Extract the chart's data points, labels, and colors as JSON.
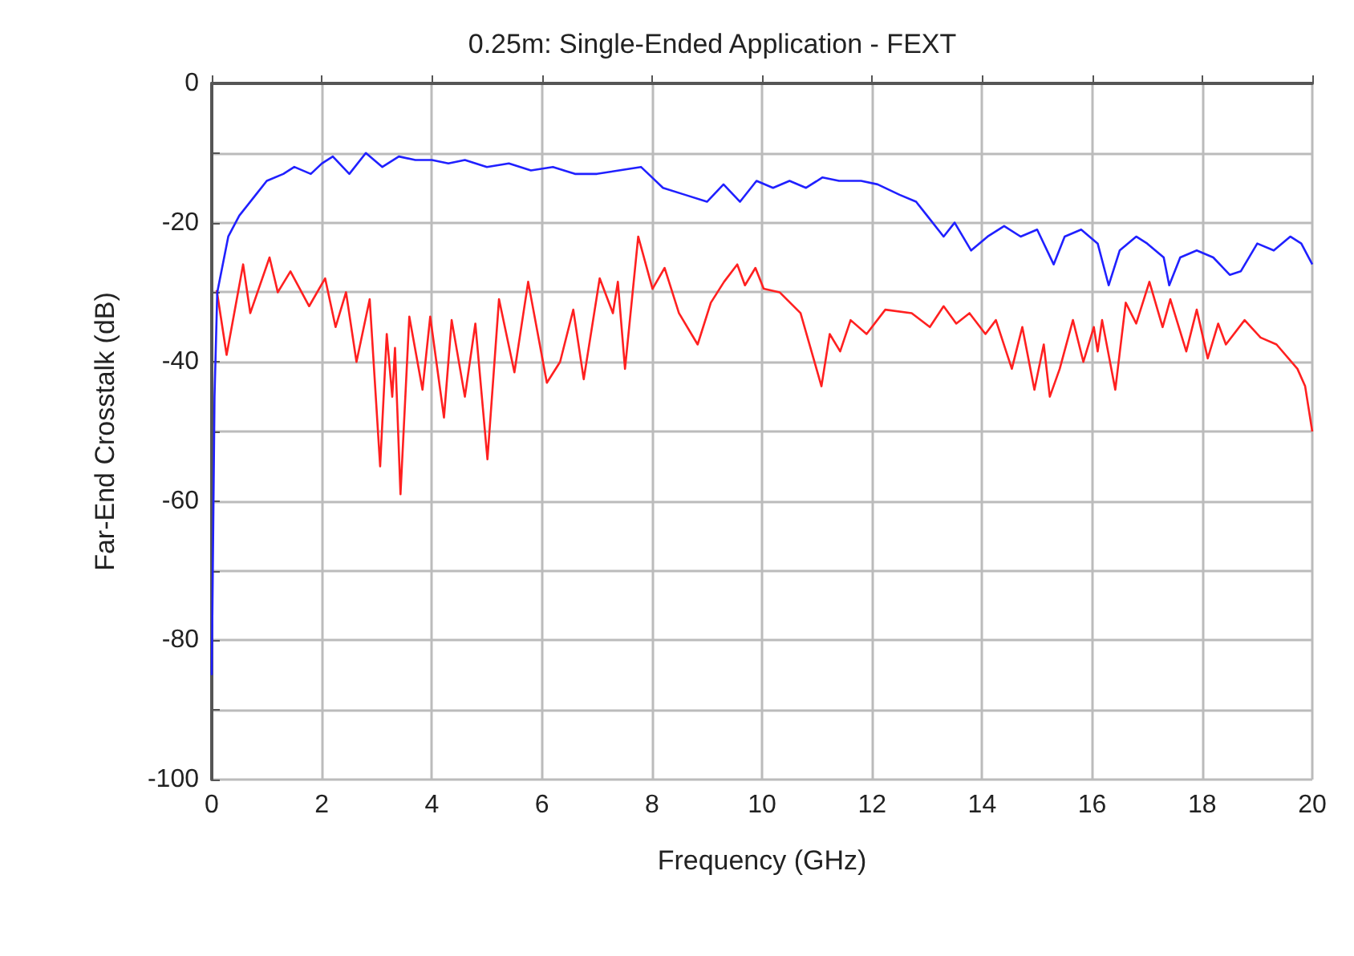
{
  "chart_data": {
    "type": "line",
    "title": "0.25m: Single-Ended Application - FEXT",
    "xlabel": "Frequency (GHz)",
    "ylabel": "Far-End Crosstalk (dB)",
    "xlim": [
      0,
      20
    ],
    "xticks": [
      0,
      2,
      4,
      6,
      8,
      10,
      12,
      14,
      16,
      18,
      20
    ],
    "ylim": [
      -100,
      0
    ],
    "yticks": [
      -100,
      {
        "value": -90,
        "label": null
      },
      -80,
      {
        "value": -70,
        "label": null
      },
      -60,
      {
        "value": -50,
        "label": null
      },
      -40,
      {
        "value": -30,
        "label": null
      },
      -20,
      {
        "value": -10,
        "label": null
      },
      0
    ],
    "grid": true,
    "marker": "none",
    "line_style": "solid",
    "series": [
      {
        "color": "#ff2020",
        "x": [
          0.09,
          0.27,
          0.57,
          0.7,
          1.05,
          1.2,
          1.43,
          1.77,
          2.06,
          2.25,
          2.44,
          2.63,
          2.87,
          3.06,
          3.18,
          3.28,
          3.33,
          3.43,
          3.59,
          3.83,
          3.97,
          4.22,
          4.36,
          4.6,
          4.79,
          5.01,
          5.22,
          5.5,
          5.75,
          6.09,
          6.33,
          6.57,
          6.76,
          7.05,
          7.29,
          7.38,
          7.51,
          7.75,
          8.01,
          8.23,
          8.49,
          8.83,
          9.07,
          9.31,
          9.55,
          9.69,
          9.88,
          10.03,
          10.32,
          10.7,
          11.08,
          11.23,
          11.42,
          11.61,
          11.9,
          12.24,
          12.72,
          13.05,
          13.3,
          13.53,
          13.77,
          14.06,
          14.25,
          14.54,
          14.73,
          14.95,
          15.12,
          15.23,
          15.41,
          15.65,
          15.84,
          16.03,
          16.1,
          16.18,
          16.42,
          16.61,
          16.8,
          17.04,
          17.28,
          17.42,
          17.71,
          17.9,
          18.1,
          18.29,
          18.43,
          18.77,
          19.06,
          19.35,
          19.73,
          19.87,
          20
        ],
        "values": [
          -29.7,
          -39,
          -26,
          -33,
          -25,
          -30,
          -27,
          -32,
          -28,
          -35,
          -30,
          -40,
          -31,
          -55,
          -36,
          -45,
          -38,
          -59,
          -33.5,
          -44,
          -33.5,
          -48,
          -34,
          -45,
          -34.5,
          -54,
          -31,
          -41.5,
          -28.5,
          -43,
          -40,
          -32.5,
          -42.5,
          -28,
          -33,
          -28.5,
          -41,
          -22,
          -29.5,
          -26.5,
          -33,
          -37.5,
          -31.5,
          -28.5,
          -26,
          -29,
          -26.5,
          -29.5,
          -30,
          -33,
          -43.5,
          -36,
          -38.5,
          -34,
          -36,
          -32.5,
          -33,
          -35,
          -32,
          -34.5,
          -33,
          -36,
          -34,
          -41,
          -35,
          -44,
          -37.5,
          -45,
          -41,
          -34,
          -40,
          -35,
          -38.5,
          -34,
          -44,
          -31.5,
          -34.5,
          -28.5,
          -35,
          -31,
          -38.5,
          -32.5,
          -39.5,
          -34.5,
          -37.5,
          -34,
          -36.5,
          -37.5,
          -41,
          -43.5,
          -50
        ]
      },
      {
        "color": "#2020ff",
        "x": [
          0,
          0.05,
          0.1,
          0.3,
          0.5,
          0.8,
          1.0,
          1.3,
          1.5,
          1.8,
          2.0,
          2.2,
          2.5,
          2.8,
          3.1,
          3.4,
          3.7,
          4.0,
          4.3,
          4.6,
          5.0,
          5.4,
          5.8,
          6.2,
          6.6,
          7.0,
          7.4,
          7.8,
          8.0,
          8.2,
          8.6,
          9.0,
          9.3,
          9.6,
          9.9,
          10.2,
          10.5,
          10.8,
          11.1,
          11.4,
          11.8,
          12.1,
          12.5,
          12.8,
          13.0,
          13.3,
          13.5,
          13.8,
          14.1,
          14.4,
          14.7,
          15.0,
          15.3,
          15.5,
          15.8,
          16.1,
          16.3,
          16.5,
          16.8,
          17.0,
          17.3,
          17.4,
          17.6,
          17.9,
          18.2,
          18.5,
          18.7,
          19.0,
          19.3,
          19.6,
          19.8,
          20
        ],
        "values": [
          -85,
          -45,
          -30,
          -22,
          -19,
          -16,
          -14,
          -13,
          -12,
          -13,
          -11.5,
          -10.5,
          -13,
          -10,
          -12,
          -10.5,
          -11,
          -11,
          -11.5,
          -11,
          -12,
          -11.5,
          -12.5,
          -12,
          -13,
          -13,
          -12.5,
          -12,
          -13.5,
          -15,
          -16,
          -17,
          -14.5,
          -17,
          -14,
          -15,
          -14,
          -15,
          -13.5,
          -14,
          -14,
          -14.5,
          -16,
          -17,
          -19,
          -22,
          -20,
          -24,
          -22,
          -20.5,
          -22,
          -21,
          -26,
          -22,
          -21,
          -23,
          -29,
          -24,
          -22,
          -23,
          -25,
          -29,
          -25,
          -24,
          -25,
          -27.5,
          -27,
          -23,
          -24,
          -22,
          -23,
          -26
        ]
      }
    ]
  }
}
